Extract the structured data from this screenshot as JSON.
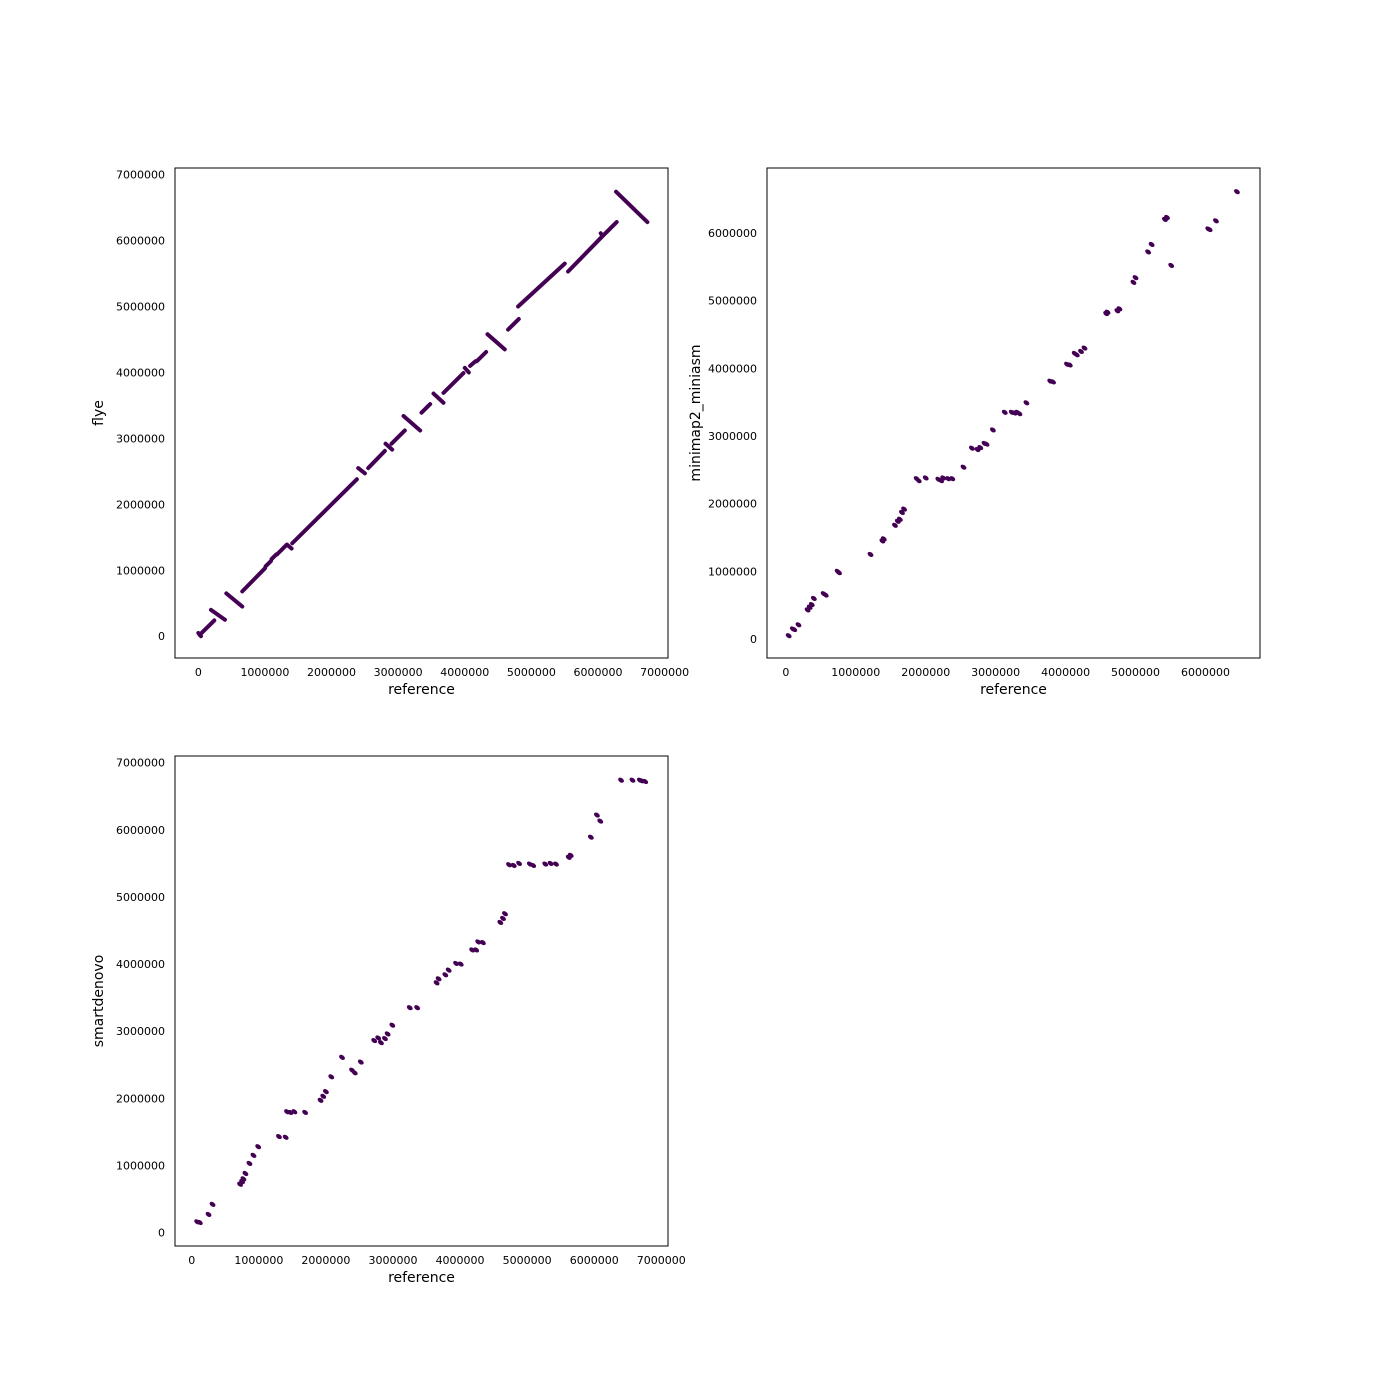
{
  "figure": {
    "background": "#ffffff",
    "mark_color": "#440154"
  },
  "chart_data": [
    {
      "type": "line",
      "xlabel": "reference",
      "ylabel": "flye",
      "xlim": [
        -350000,
        7050000
      ],
      "ylim": [
        -330000,
        7100000
      ],
      "xticks": [
        0,
        1000000,
        2000000,
        3000000,
        4000000,
        5000000,
        6000000,
        7000000
      ],
      "yticks": [
        0,
        1000000,
        2000000,
        3000000,
        4000000,
        5000000,
        6000000,
        7000000
      ],
      "xtick_labels": [
        "0",
        "1000000",
        "2000000",
        "3000000",
        "4000000",
        "5000000",
        "6000000",
        "7000000"
      ],
      "ytick_labels": [
        "0",
        "1000000",
        "2000000",
        "3000000",
        "4000000",
        "5000000",
        "6000000",
        "7000000"
      ],
      "segments": [
        [
          [
            0,
            50000
          ],
          [
            40000,
            0
          ]
        ],
        [
          [
            20000,
            20000
          ],
          [
            240000,
            240000
          ]
        ],
        [
          [
            190000,
            400000
          ],
          [
            400000,
            250000
          ]
        ],
        [
          [
            420000,
            650000
          ],
          [
            660000,
            450000
          ]
        ],
        [
          [
            660000,
            680000
          ],
          [
            1000000,
            1030000
          ]
        ],
        [
          [
            1010000,
            1060000
          ],
          [
            1090000,
            1140000
          ]
        ],
        [
          [
            1100000,
            1170000
          ],
          [
            1170000,
            1240000
          ]
        ],
        [
          [
            1180000,
            1240000
          ],
          [
            1240000,
            1300000
          ]
        ],
        [
          [
            1250000,
            1310000
          ],
          [
            1320000,
            1380000
          ]
        ],
        [
          [
            1330000,
            1390000
          ],
          [
            1400000,
            1330000
          ]
        ],
        [
          [
            1410000,
            1410000
          ],
          [
            2380000,
            2380000
          ]
        ],
        [
          [
            2400000,
            2550000
          ],
          [
            2500000,
            2470000
          ]
        ],
        [
          [
            2550000,
            2550000
          ],
          [
            2800000,
            2810000
          ]
        ],
        [
          [
            2810000,
            2920000
          ],
          [
            2910000,
            2830000
          ]
        ],
        [
          [
            2900000,
            2920000
          ],
          [
            3100000,
            3120000
          ]
        ],
        [
          [
            3080000,
            3340000
          ],
          [
            3330000,
            3120000
          ]
        ],
        [
          [
            3350000,
            3390000
          ],
          [
            3480000,
            3520000
          ]
        ],
        [
          [
            3530000,
            3680000
          ],
          [
            3680000,
            3540000
          ]
        ],
        [
          [
            3680000,
            3690000
          ],
          [
            3980000,
            3990000
          ]
        ],
        [
          [
            4000000,
            4070000
          ],
          [
            4060000,
            4000000
          ]
        ],
        [
          [
            4080000,
            4100000
          ],
          [
            4160000,
            4170000
          ]
        ],
        [
          [
            4180000,
            4170000
          ],
          [
            4320000,
            4310000
          ]
        ],
        [
          [
            4340000,
            4580000
          ],
          [
            4600000,
            4350000
          ]
        ],
        [
          [
            4650000,
            4650000
          ],
          [
            4810000,
            4810000
          ]
        ],
        [
          [
            4800000,
            5000000
          ],
          [
            5500000,
            5650000
          ]
        ],
        [
          [
            5550000,
            5530000
          ],
          [
            6070000,
            6070000
          ]
        ],
        [
          [
            6040000,
            6110000
          ],
          [
            6060000,
            6080000
          ]
        ],
        [
          [
            6080000,
            6080000
          ],
          [
            6280000,
            6280000
          ]
        ],
        [
          [
            6270000,
            6740000
          ],
          [
            6740000,
            6280000
          ]
        ]
      ]
    },
    {
      "type": "scatter",
      "xlabel": "reference",
      "ylabel": "minimap2_miniasm",
      "xlim": [
        -270000,
        6780000
      ],
      "ylim": [
        -280000,
        6960000
      ],
      "xticks": [
        0,
        1000000,
        2000000,
        3000000,
        4000000,
        5000000,
        6000000
      ],
      "yticks": [
        0,
        1000000,
        2000000,
        3000000,
        4000000,
        5000000,
        6000000
      ],
      "xtick_labels": [
        "0",
        "1000000",
        "2000000",
        "3000000",
        "4000000",
        "5000000",
        "6000000"
      ],
      "ytick_labels": [
        "0",
        "1000000",
        "2000000",
        "3000000",
        "4000000",
        "5000000",
        "6000000"
      ],
      "points": [
        [
          40000,
          50000
        ],
        [
          100000,
          150000
        ],
        [
          120000,
          140000
        ],
        [
          180000,
          210000
        ],
        [
          310000,
          430000
        ],
        [
          340000,
          470000
        ],
        [
          370000,
          510000
        ],
        [
          400000,
          600000
        ],
        [
          540000,
          670000
        ],
        [
          570000,
          650000
        ],
        [
          740000,
          1000000
        ],
        [
          760000,
          980000
        ],
        [
          1210000,
          1250000
        ],
        [
          1380000,
          1450000
        ],
        [
          1400000,
          1480000
        ],
        [
          1560000,
          1680000
        ],
        [
          1600000,
          1740000
        ],
        [
          1630000,
          1770000
        ],
        [
          1660000,
          1870000
        ],
        [
          1690000,
          1920000
        ],
        [
          1870000,
          2370000
        ],
        [
          1900000,
          2340000
        ],
        [
          2000000,
          2380000
        ],
        [
          2180000,
          2360000
        ],
        [
          2220000,
          2340000
        ],
        [
          2250000,
          2380000
        ],
        [
          2320000,
          2370000
        ],
        [
          2380000,
          2370000
        ],
        [
          2540000,
          2540000
        ],
        [
          2660000,
          2820000
        ],
        [
          2740000,
          2800000
        ],
        [
          2780000,
          2830000
        ],
        [
          2840000,
          2890000
        ],
        [
          2870000,
          2880000
        ],
        [
          2960000,
          3090000
        ],
        [
          3130000,
          3350000
        ],
        [
          3230000,
          3350000
        ],
        [
          3270000,
          3340000
        ],
        [
          3310000,
          3350000
        ],
        [
          3340000,
          3330000
        ],
        [
          3440000,
          3490000
        ],
        [
          3780000,
          3810000
        ],
        [
          3820000,
          3800000
        ],
        [
          4020000,
          4060000
        ],
        [
          4060000,
          4050000
        ],
        [
          4130000,
          4220000
        ],
        [
          4160000,
          4200000
        ],
        [
          4220000,
          4250000
        ],
        [
          4270000,
          4300000
        ],
        [
          4580000,
          4810000
        ],
        [
          4600000,
          4830000
        ],
        [
          4740000,
          4850000
        ],
        [
          4770000,
          4880000
        ],
        [
          4970000,
          5270000
        ],
        [
          5000000,
          5340000
        ],
        [
          5180000,
          5720000
        ],
        [
          5230000,
          5830000
        ],
        [
          5420000,
          6200000
        ],
        [
          5450000,
          6230000
        ],
        [
          5510000,
          5520000
        ],
        [
          6040000,
          6060000
        ],
        [
          6060000,
          6050000
        ],
        [
          6150000,
          6180000
        ],
        [
          6450000,
          6610000
        ]
      ]
    },
    {
      "type": "scatter",
      "xlabel": "reference",
      "ylabel": "smartdenovo",
      "xlim": [
        -250000,
        7100000
      ],
      "ylim": [
        -200000,
        7100000
      ],
      "xticks": [
        0,
        1000000,
        2000000,
        3000000,
        4000000,
        5000000,
        6000000,
        7000000
      ],
      "yticks": [
        0,
        1000000,
        2000000,
        3000000,
        4000000,
        5000000,
        6000000,
        7000000
      ],
      "xtick_labels": [
        "0",
        "1000000",
        "2000000",
        "3000000",
        "4000000",
        "5000000",
        "6000000",
        "7000000"
      ],
      "ytick_labels": [
        "0",
        "1000000",
        "2000000",
        "3000000",
        "4000000",
        "5000000",
        "6000000",
        "7000000"
      ],
      "points": [
        [
          80000,
          160000
        ],
        [
          120000,
          150000
        ],
        [
          250000,
          270000
        ],
        [
          310000,
          420000
        ],
        [
          720000,
          720000
        ],
        [
          750000,
          760000
        ],
        [
          770000,
          800000
        ],
        [
          800000,
          880000
        ],
        [
          860000,
          1030000
        ],
        [
          920000,
          1150000
        ],
        [
          990000,
          1280000
        ],
        [
          1300000,
          1430000
        ],
        [
          1400000,
          1420000
        ],
        [
          1420000,
          1800000
        ],
        [
          1470000,
          1790000
        ],
        [
          1530000,
          1800000
        ],
        [
          1690000,
          1790000
        ],
        [
          1920000,
          1970000
        ],
        [
          1960000,
          2030000
        ],
        [
          2000000,
          2100000
        ],
        [
          2080000,
          2320000
        ],
        [
          2240000,
          2610000
        ],
        [
          2390000,
          2420000
        ],
        [
          2430000,
          2380000
        ],
        [
          2520000,
          2540000
        ],
        [
          2720000,
          2860000
        ],
        [
          2780000,
          2900000
        ],
        [
          2820000,
          2830000
        ],
        [
          2880000,
          2890000
        ],
        [
          2920000,
          2960000
        ],
        [
          2990000,
          3090000
        ],
        [
          3250000,
          3350000
        ],
        [
          3360000,
          3350000
        ],
        [
          3650000,
          3720000
        ],
        [
          3680000,
          3780000
        ],
        [
          3780000,
          3840000
        ],
        [
          3830000,
          3910000
        ],
        [
          3940000,
          4010000
        ],
        [
          4010000,
          4000000
        ],
        [
          4180000,
          4210000
        ],
        [
          4240000,
          4210000
        ],
        [
          4270000,
          4330000
        ],
        [
          4340000,
          4320000
        ],
        [
          4600000,
          4620000
        ],
        [
          4640000,
          4680000
        ],
        [
          4670000,
          4750000
        ],
        [
          4730000,
          5480000
        ],
        [
          4800000,
          5470000
        ],
        [
          4880000,
          5500000
        ],
        [
          5040000,
          5490000
        ],
        [
          5090000,
          5470000
        ],
        [
          5270000,
          5490000
        ],
        [
          5350000,
          5500000
        ],
        [
          5430000,
          5490000
        ],
        [
          5620000,
          5590000
        ],
        [
          5650000,
          5620000
        ],
        [
          5950000,
          5890000
        ],
        [
          6040000,
          6220000
        ],
        [
          6090000,
          6130000
        ],
        [
          6400000,
          6740000
        ],
        [
          6570000,
          6740000
        ],
        [
          6680000,
          6740000
        ],
        [
          6710000,
          6730000
        ],
        [
          6760000,
          6720000
        ]
      ]
    }
  ]
}
